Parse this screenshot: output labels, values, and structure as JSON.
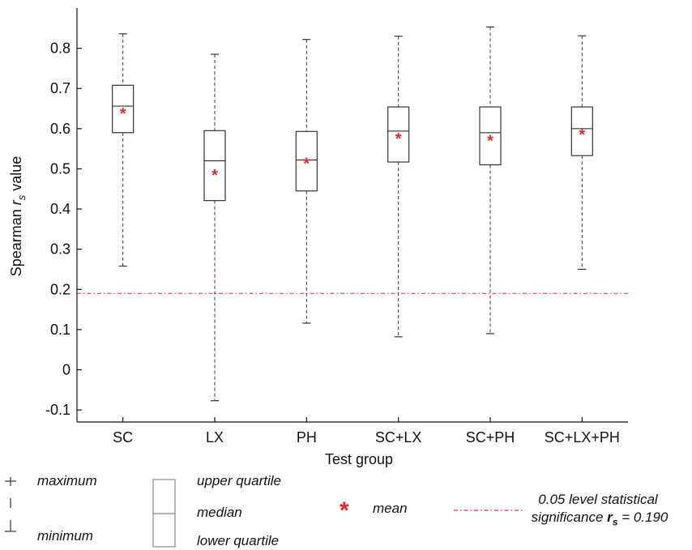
{
  "chart_data": {
    "type": "box",
    "xlabel": "Test group",
    "ylabel_main": "Spearman ",
    "ylabel_var": "r",
    "ylabel_sub": "s",
    "ylabel_tail": " value",
    "ylim": [
      -0.13,
      0.9
    ],
    "yticks": [
      -0.1,
      0,
      0.1,
      0.2,
      0.3,
      0.4,
      0.5,
      0.6,
      0.7,
      0.8
    ],
    "ytick_labels": [
      "-0.1",
      "0",
      "0.1",
      "0.2",
      "0.3",
      "0.4",
      "0.5",
      "0.6",
      "0.7",
      "0.8"
    ],
    "categories": [
      "SC",
      "LX",
      "PH",
      "SC+LX",
      "SC+PH",
      "SC+LX+PH"
    ],
    "boxes": [
      {
        "group": "SC",
        "min": 0.258,
        "q1": 0.59,
        "median": 0.656,
        "q3": 0.708,
        "max": 0.836,
        "mean": 0.64
      },
      {
        "group": "LX",
        "min": -0.077,
        "q1": 0.421,
        "median": 0.52,
        "q3": 0.595,
        "max": 0.785,
        "mean": 0.487
      },
      {
        "group": "PH",
        "min": 0.116,
        "q1": 0.445,
        "median": 0.522,
        "q3": 0.593,
        "max": 0.822,
        "mean": 0.516
      },
      {
        "group": "SC+LX",
        "min": 0.082,
        "q1": 0.517,
        "median": 0.594,
        "q3": 0.654,
        "max": 0.83,
        "mean": 0.577
      },
      {
        "group": "SC+PH",
        "min": 0.09,
        "q1": 0.51,
        "median": 0.59,
        "q3": 0.654,
        "max": 0.853,
        "mean": 0.572
      },
      {
        "group": "SC+LX+PH",
        "min": 0.25,
        "q1": 0.533,
        "median": 0.6,
        "q3": 0.654,
        "max": 0.831,
        "mean": 0.588
      }
    ],
    "significance_line": 0.19,
    "colors": {
      "box": "#333333",
      "mean": "#e8262a",
      "significance": "#e8262a",
      "axis": "#111111"
    }
  },
  "legend": {
    "maximum": "maximum",
    "minimum": "minimum",
    "upper_quartile": "upper quartile",
    "median": "median",
    "lower_quartile": "lower quartile",
    "mean_symbol": "*",
    "mean": "mean",
    "sig_line1": "0.05 level statistical",
    "sig_line2_prefix": "significance ",
    "sig_var": "r",
    "sig_sub": "s",
    "sig_line2_suffix": " = 0.190"
  }
}
